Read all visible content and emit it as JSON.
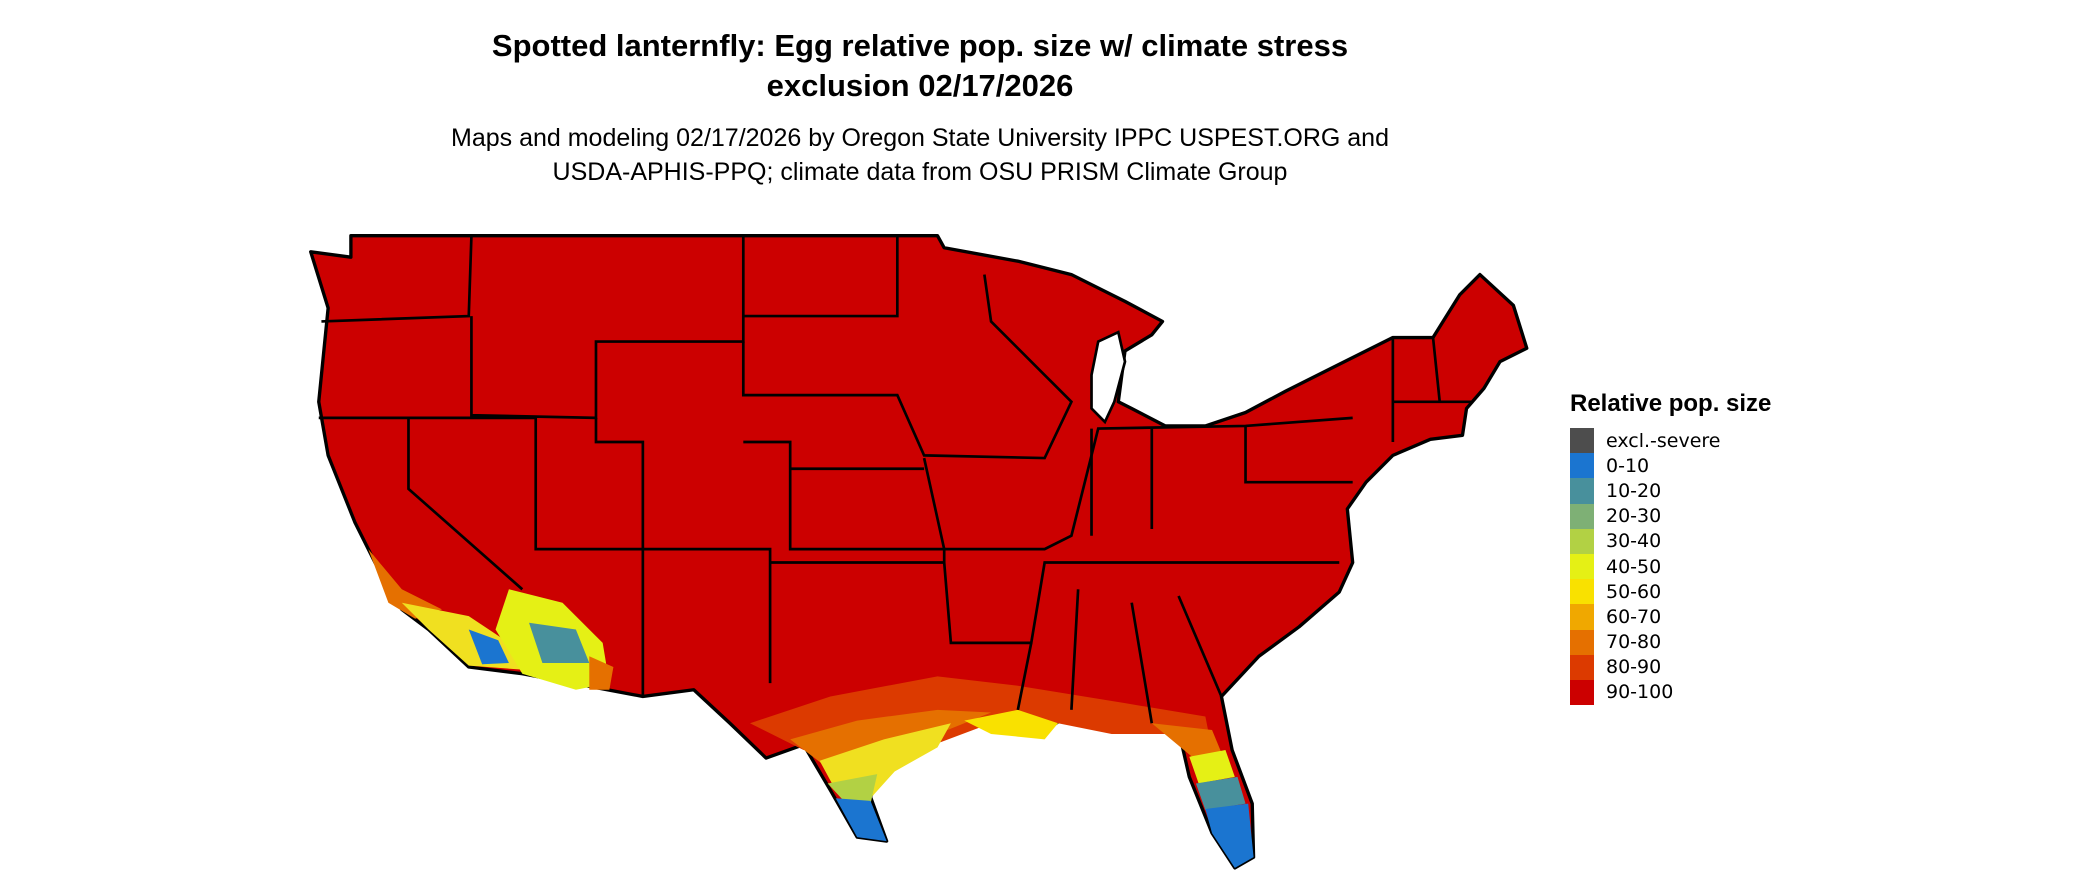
{
  "title_line1": "Spotted lanternfly: Egg relative pop. size w/ climate stress",
  "title_line2": "exclusion 02/17/2026",
  "subtitle_line1": "Maps and modeling 02/17/2026 by Oregon State University IPPC USPEST.ORG and",
  "subtitle_line2": "USDA-APHIS-PPQ; climate data from OSU PRISM Climate Group",
  "legend": {
    "title": "Relative pop. size",
    "items": [
      {
        "label": "excl.-severe",
        "color": "#4d4d4d"
      },
      {
        "label": "0-10",
        "color": "#1b75d0"
      },
      {
        "label": "10-20",
        "color": "#48909c"
      },
      {
        "label": "20-30",
        "color": "#7eb075"
      },
      {
        "label": "30-40",
        "color": "#b2d144"
      },
      {
        "label": "40-50",
        "color": "#e5f015"
      },
      {
        "label": "50-60",
        "color": "#f9e100"
      },
      {
        "label": "60-70",
        "color": "#f0a800"
      },
      {
        "label": "70-80",
        "color": "#e57000"
      },
      {
        "label": "80-90",
        "color": "#dc3a00"
      },
      {
        "label": "90-100",
        "color": "#cc0000"
      }
    ]
  },
  "chart_data": {
    "type": "map",
    "region": "contiguous United States",
    "dominant_class": "90-100",
    "lower_classes_regions": "southern California, southern Arizona, south Texas, Gulf coast, Florida peninsula"
  }
}
